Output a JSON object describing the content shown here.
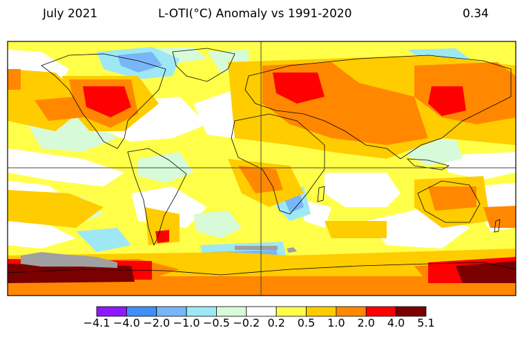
{
  "header": {
    "period": "July 2021",
    "title": "L-OTI(°C) Anomaly vs 1991-2020",
    "global_mean": "0.34"
  },
  "colors": {
    "no_data": "#a0a0a0",
    "frame": "#000000",
    "coastline": "#000000"
  },
  "colorbar": {
    "labels": [
      "−4.1",
      "−4.0",
      "−2.0",
      "−1.0",
      "−0.5",
      "−0.2",
      "0.2",
      "0.5",
      "1.0",
      "2.0",
      "4.0",
      "5.1"
    ],
    "bins": [
      {
        "color": "#8b1aff"
      },
      {
        "color": "#3f8ff5"
      },
      {
        "color": "#78b6f7"
      },
      {
        "color": "#9ee8f5"
      },
      {
        "color": "#d7fbd8"
      },
      {
        "color": "#ffffff"
      },
      {
        "color": "#ffff4a"
      },
      {
        "color": "#ffcc00"
      },
      {
        "color": "#ff8800"
      },
      {
        "color": "#ff0000"
      },
      {
        "color": "#7a0000"
      }
    ]
  }
}
